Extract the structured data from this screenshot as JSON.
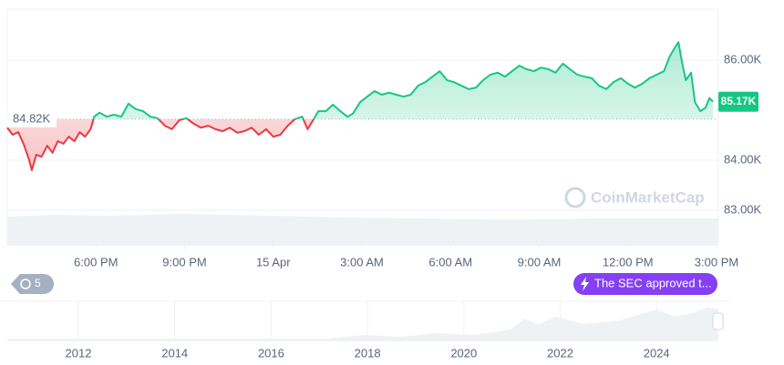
{
  "chart_data": {
    "type": "line",
    "x": [
      0,
      0.18,
      0.37,
      0.55,
      0.73,
      0.83,
      0.98,
      1.16,
      1.35,
      1.53,
      1.71,
      1.9,
      2.08,
      2.27,
      2.45,
      2.63,
      2.82,
      2.94,
      3.12,
      3.37,
      3.61,
      3.86,
      4.1,
      4.35,
      4.59,
      4.84,
      5.08,
      5.33,
      5.57,
      5.82,
      6.06,
      6.31,
      6.55,
      6.8,
      7.04,
      7.29,
      7.53,
      7.78,
      8.02,
      8.27,
      8.51,
      8.76,
      9.0,
      9.24,
      9.49,
      9.73,
      9.98,
      10.16,
      10.35,
      10.53,
      10.78,
      11.02,
      11.27,
      11.51,
      11.69,
      11.94,
      12.18,
      12.43,
      12.67,
      12.92,
      13.16,
      13.41,
      13.65,
      13.9,
      14.14,
      14.39,
      14.63,
      14.88,
      15.12,
      15.37,
      15.61,
      15.86,
      16.1,
      16.35,
      16.59,
      16.84,
      17.08,
      17.33,
      17.57,
      17.82,
      18.06,
      18.31,
      18.55,
      18.8,
      19.04,
      19.29,
      19.53,
      19.78,
      20.02,
      20.27,
      20.51,
      20.76,
      21.0,
      21.24,
      21.49,
      21.73,
      21.98,
      22.22,
      22.41,
      22.59,
      22.71,
      22.84,
      22.96,
      23.14,
      23.27,
      23.45,
      23.63,
      23.76,
      23.88
    ],
    "values": [
      84650,
      84510,
      84560,
      84330,
      84020,
      83800,
      84110,
      84070,
      84290,
      84150,
      84380,
      84330,
      84470,
      84380,
      84560,
      84470,
      84620,
      84870,
      84950,
      84870,
      84910,
      84870,
      85130,
      85020,
      84980,
      84870,
      84840,
      84690,
      84620,
      84800,
      84840,
      84730,
      84650,
      84690,
      84620,
      84580,
      84650,
      84550,
      84580,
      84650,
      84510,
      84620,
      84470,
      84510,
      84690,
      84820,
      84870,
      84620,
      84800,
      84980,
      84980,
      85110,
      84980,
      84870,
      84930,
      85160,
      85270,
      85380,
      85310,
      85350,
      85310,
      85270,
      85310,
      85490,
      85560,
      85670,
      85780,
      85600,
      85560,
      85490,
      85420,
      85450,
      85600,
      85710,
      85750,
      85670,
      85780,
      85890,
      85820,
      85780,
      85850,
      85820,
      85750,
      85930,
      85820,
      85710,
      85670,
      85640,
      85490,
      85420,
      85560,
      85640,
      85530,
      85450,
      85530,
      85640,
      85710,
      85780,
      86070,
      86250,
      86360,
      85930,
      85600,
      85750,
      85160,
      84980,
      85050,
      85240,
      85170
    ],
    "up_color": "#16c784",
    "down_color": "#ea3943",
    "baseline": 84820,
    "baseline_label": "84.82K",
    "last_label": "85.17K",
    "xlim": [
      0,
      24
    ],
    "xticks": [
      {
        "value": 3,
        "label": "6:00 PM"
      },
      {
        "value": 6,
        "label": "9:00 PM"
      },
      {
        "value": 9,
        "label": "15 Apr"
      },
      {
        "value": 12,
        "label": "3:00 AM"
      },
      {
        "value": 15,
        "label": "6:00 AM"
      },
      {
        "value": 18,
        "label": "9:00 AM"
      },
      {
        "value": 21,
        "label": "12:00 PM"
      },
      {
        "value": 24,
        "label": "3:00 PM"
      }
    ],
    "ylim": [
      82290,
      87020
    ],
    "yticks": [
      {
        "value": 83000,
        "label": "83.00K"
      },
      {
        "value": 84000,
        "label": "84.00K"
      },
      {
        "value": 86000,
        "label": "86.00K"
      }
    ],
    "grid": true,
    "watermark": "CoinMarketCap",
    "history_count": "5",
    "annotation": "The SEC approved t...",
    "navigator_labels": [
      "2012",
      "2014",
      "2016",
      "2018",
      "2020",
      "2022",
      "2024"
    ]
  }
}
